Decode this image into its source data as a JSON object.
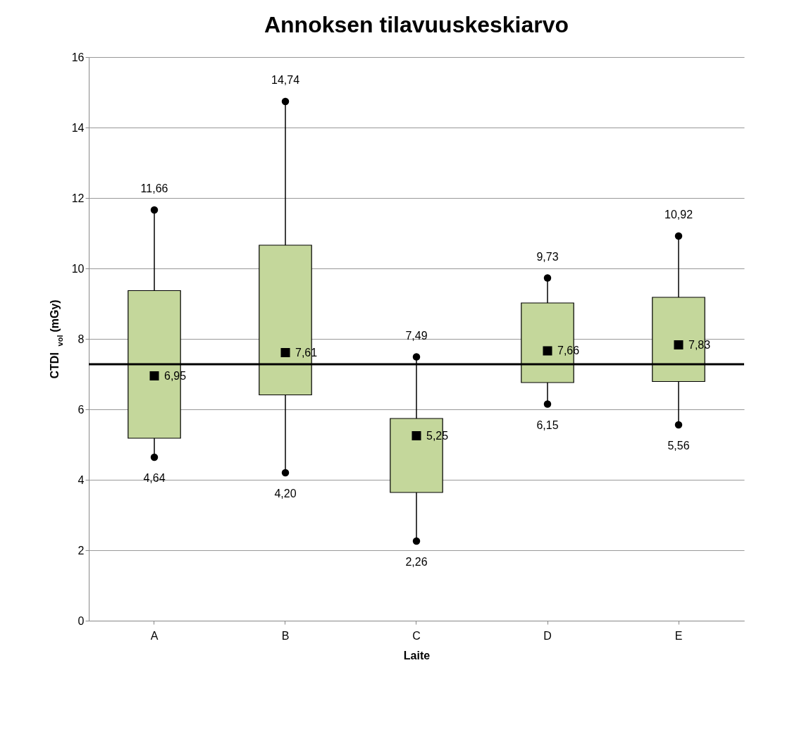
{
  "chart_data": {
    "type": "box",
    "title": "Annoksen tilavuuskeskiarvo",
    "xlabel": "Laite",
    "ylabel": "CTDI$_{vol}$ (mGy)",
    "categories": [
      "A",
      "B",
      "C",
      "D",
      "E"
    ],
    "boxes": [
      {
        "low": 4.64,
        "q1": 5.18,
        "q3": 9.37,
        "high": 11.66,
        "mean": 6.95
      },
      {
        "low": 4.2,
        "q1": 6.41,
        "q3": 10.66,
        "high": 14.74,
        "mean": 7.61
      },
      {
        "low": 2.26,
        "q1": 3.64,
        "q3": 5.74,
        "high": 7.49,
        "mean": 5.25
      },
      {
        "low": 6.15,
        "q1": 6.76,
        "q3": 9.02,
        "high": 9.73,
        "mean": 7.66
      },
      {
        "low": 5.56,
        "q1": 6.79,
        "q3": 9.18,
        "high": 10.92,
        "mean": 7.83
      }
    ],
    "color": "#c4d79b",
    "ylim": [
      0,
      16
    ],
    "yticks": [
      0,
      2,
      4,
      6,
      8,
      10,
      12,
      14,
      16
    ],
    "grid": "y",
    "marker": "circle",
    "ref_lines": [
      {
        "axis": "y",
        "value": 7.28,
        "color": "#000000"
      }
    ],
    "annotations": [
      {
        "text": "11,66",
        "x": "A",
        "y": 11.66
      },
      {
        "text": "6,95",
        "x": "A",
        "y": 6.95
      },
      {
        "text": "4,64",
        "x": "A",
        "y": 4.64
      },
      {
        "text": "14,74",
        "x": "B",
        "y": 14.74
      },
      {
        "text": "7,61",
        "x": "B",
        "y": 7.61
      },
      {
        "text": "4,20",
        "x": "B",
        "y": 4.2
      },
      {
        "text": "7,49",
        "x": "C",
        "y": 7.49
      },
      {
        "text": "5,25",
        "x": "C",
        "y": 5.25
      },
      {
        "text": "2,26",
        "x": "C",
        "y": 2.26
      },
      {
        "text": "9,73",
        "x": "D",
        "y": 9.73
      },
      {
        "text": "7,66",
        "x": "D",
        "y": 7.66
      },
      {
        "text": "6,15",
        "x": "D",
        "y": 6.15
      },
      {
        "text": "10,92",
        "x": "E",
        "y": 10.92
      },
      {
        "text": "7,83",
        "x": "E",
        "y": 7.83
      },
      {
        "text": "5,56",
        "x": "E",
        "y": 5.56
      }
    ]
  }
}
